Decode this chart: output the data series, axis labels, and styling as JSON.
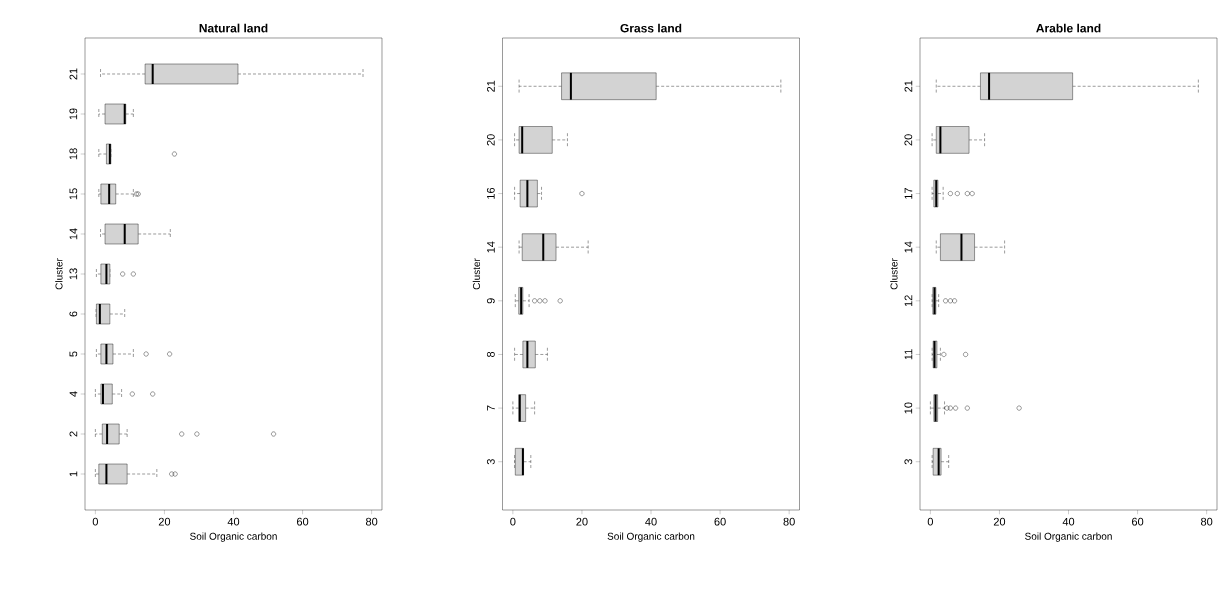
{
  "chart_data": [
    {
      "type": "box",
      "orientation": "horizontal",
      "title": "Natural land",
      "xlabel": "Soil Organic carbon",
      "ylabel": "Cluster",
      "marker": "circle",
      "categories": [
        "21",
        "19",
        "18",
        "15",
        "14",
        "13",
        "6",
        "5",
        "4",
        "2",
        "1"
      ],
      "xlim": [
        -3,
        83
      ],
      "xticks": [
        0,
        20,
        40,
        60,
        80
      ],
      "series": [
        {
          "color": "#d3d3d3",
          "boxes": [
            {
              "low": 1.5,
              "q1": 14.4,
              "median": 16.6,
              "q3": 41.3,
              "high": 77.5
            },
            {
              "low": 1,
              "q1": 2.8,
              "median": 8.5,
              "q3": 8.8,
              "high": 11
            },
            {
              "low": 1,
              "q1": 3.2,
              "median": 4.2,
              "q3": 4.5,
              "high": 4.5,
              "outliers": [
                22.9
              ]
            },
            {
              "low": 1,
              "q1": 1.6,
              "median": 4,
              "q3": 5.9,
              "high": 11,
              "outliers": [
                11.9,
                12.4
              ]
            },
            {
              "low": 1.5,
              "q1": 2.8,
              "median": 8.5,
              "q3": 12.4,
              "high": 21.7
            },
            {
              "low": 0.3,
              "q1": 1.6,
              "median": 3.2,
              "q3": 4.2,
              "high": 4.2,
              "outliers": [
                7.9,
                11
              ]
            },
            {
              "low": 0.2,
              "q1": 0.3,
              "median": 1.3,
              "q3": 4.2,
              "high": 8.5
            },
            {
              "low": 0.3,
              "q1": 1.6,
              "median": 3.2,
              "q3": 5.1,
              "high": 11,
              "outliers": [
                14.7,
                21.5
              ]
            },
            {
              "low": 0,
              "q1": 1.6,
              "median": 2.2,
              "q3": 4.9,
              "high": 7.6,
              "outliers": [
                10.7,
                16.6
              ]
            },
            {
              "low": 0,
              "q1": 2,
              "median": 3.4,
              "q3": 6.9,
              "high": 9.2,
              "outliers": [
                25,
                29.4,
                51.6
              ]
            },
            {
              "low": 0,
              "q1": 1,
              "median": 3.2,
              "q3": 9.2,
              "high": 17.8,
              "outliers": [
                22.1,
                23.1
              ]
            }
          ]
        }
      ]
    },
    {
      "type": "box",
      "orientation": "horizontal",
      "title": "Grass land",
      "xlabel": "Soil Organic carbon",
      "ylabel": "Cluster",
      "marker": "circle",
      "categories": [
        "21",
        "20",
        "16",
        "14",
        "9",
        "8",
        "7",
        "3"
      ],
      "xlim": [
        -3,
        83
      ],
      "xticks": [
        0,
        20,
        40,
        60,
        80
      ],
      "series": [
        {
          "color": "#d3d3d3",
          "boxes": [
            {
              "low": 1.8,
              "q1": 14.1,
              "median": 16.8,
              "q3": 41.5,
              "high": 77.6
            },
            {
              "low": 0.5,
              "q1": 1.8,
              "median": 2.7,
              "q3": 11.4,
              "high": 15.8
            },
            {
              "low": 0.5,
              "q1": 2.1,
              "median": 4.2,
              "q3": 7.1,
              "high": 8.3,
              "outliers": [
                20
              ]
            },
            {
              "low": 1.8,
              "q1": 2.7,
              "median": 8.8,
              "q3": 12.5,
              "high": 21.8
            },
            {
              "low": 0.7,
              "q1": 1.7,
              "median": 2.4,
              "q3": 2.9,
              "high": 4.7,
              "outliers": [
                6.3,
                7.8,
                9.3,
                13.7
              ]
            },
            {
              "low": 0.5,
              "q1": 2.9,
              "median": 4.2,
              "q3": 6.5,
              "high": 10
            },
            {
              "low": 0,
              "q1": 1.7,
              "median": 2,
              "q3": 3.7,
              "high": 6.3
            },
            {
              "low": 0.5,
              "q1": 0.7,
              "median": 2.9,
              "q3": 3.1,
              "high": 5.2
            }
          ]
        }
      ]
    },
    {
      "type": "box",
      "orientation": "horizontal",
      "title": "Arable land",
      "xlabel": "Soil Organic carbon",
      "ylabel": "Cluster",
      "marker": "circle",
      "categories": [
        "21",
        "20",
        "17",
        "14",
        "12",
        "11",
        "10",
        "3"
      ],
      "xlim": [
        -3,
        83
      ],
      "xticks": [
        0,
        20,
        40,
        60,
        80
      ],
      "series": [
        {
          "color": "#d3d3d3",
          "boxes": [
            {
              "low": 1.7,
              "q1": 14.5,
              "median": 17,
              "q3": 41.2,
              "high": 77.6
            },
            {
              "low": 0.5,
              "q1": 1.7,
              "median": 2.9,
              "q3": 11.2,
              "high": 15.7
            },
            {
              "low": 0.5,
              "q1": 1,
              "median": 1.7,
              "q3": 2.2,
              "high": 3.7,
              "outliers": [
                5.8,
                7.8,
                10.7,
                12.1
              ]
            },
            {
              "low": 1.7,
              "q1": 2.9,
              "median": 9,
              "q3": 12.8,
              "high": 21.5
            },
            {
              "low": 0.5,
              "q1": 0.7,
              "median": 1.2,
              "q3": 1.6,
              "high": 2.4,
              "outliers": [
                4.4,
                5.8,
                7
              ]
            },
            {
              "low": 0.5,
              "q1": 0.8,
              "median": 1.2,
              "q3": 1.9,
              "high": 2.9,
              "outliers": [
                3.9,
                10.2
              ]
            },
            {
              "low": 0,
              "q1": 1,
              "median": 1.5,
              "q3": 2.1,
              "high": 4.1,
              "outliers": [
                4.8,
                5.8,
                7.3,
                10.7,
                25.7
              ]
            },
            {
              "low": 0.5,
              "q1": 0.8,
              "median": 2.4,
              "q3": 3.1,
              "high": 5.3
            }
          ]
        }
      ]
    }
  ]
}
